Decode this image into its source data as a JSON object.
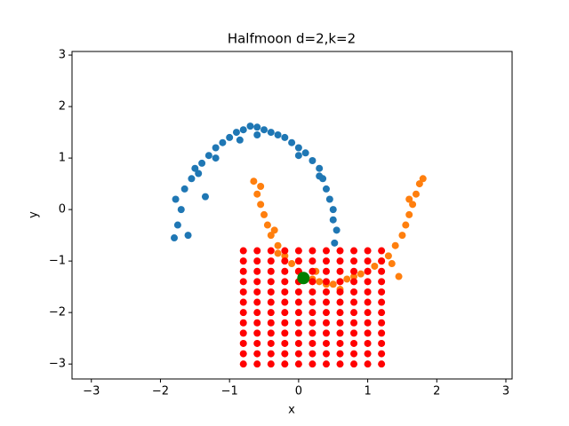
{
  "chart_data": {
    "type": "scatter",
    "title": "Halfmoon d=2,k=2",
    "x_label": "x",
    "y_label": "y",
    "xlim": [
      -3.28,
      3.09
    ],
    "ylim": [
      -3.29,
      3.07
    ],
    "xticks": [
      {
        "value": -3,
        "label": "−3"
      },
      {
        "value": -2,
        "label": "−2"
      },
      {
        "value": -1,
        "label": "−1"
      },
      0,
      1,
      2,
      3
    ],
    "yticks": [
      {
        "value": -3,
        "label": "−3"
      },
      {
        "value": -2,
        "label": "−2"
      },
      {
        "value": -1,
        "label": "−1"
      },
      0,
      1,
      2,
      3
    ],
    "grid": false,
    "series": [
      {
        "color": "#1f77b4",
        "x": [
          -1.8,
          -1.75,
          -1.78,
          -1.7,
          -1.65,
          -1.55,
          -1.5,
          -1.4,
          -1.3,
          -1.2,
          -1.1,
          -1.0,
          -0.9,
          -0.8,
          -0.7,
          -0.6,
          -0.5,
          -0.4,
          -0.3,
          -0.2,
          -0.1,
          0.0,
          0.1,
          0.2,
          0.3,
          0.35,
          0.4,
          0.45,
          0.5,
          0.5,
          0.55,
          0.52,
          -1.35,
          -1.6,
          -1.2,
          -0.6,
          0.0,
          0.3,
          -1.45,
          -0.85
        ],
        "y": [
          -0.55,
          -0.3,
          0.2,
          0,
          0.4,
          0.6,
          0.8,
          0.9,
          1.05,
          1.2,
          1.3,
          1.4,
          1.5,
          1.55,
          1.62,
          1.6,
          1.55,
          1.5,
          1.45,
          1.4,
          1.3,
          1.2,
          1.1,
          0.95,
          0.8,
          0.6,
          0.4,
          0.2,
          0,
          -0.2,
          -0.4,
          -0.65,
          0.25,
          -0.5,
          1.0,
          1.45,
          1.05,
          0.65,
          0.7,
          1.35
        ]
      },
      {
        "color": "#ff7f0e",
        "x": [
          -0.65,
          -0.6,
          -0.55,
          -0.5,
          -0.45,
          -0.4,
          -0.3,
          -0.2,
          -0.1,
          0.0,
          0.1,
          0.2,
          0.3,
          0.4,
          0.5,
          0.6,
          0.7,
          0.8,
          0.9,
          1.0,
          1.1,
          1.2,
          1.3,
          1.4,
          1.5,
          1.55,
          1.6,
          1.65,
          1.7,
          1.75,
          1.8,
          -0.55,
          -0.35,
          0.25,
          0.6,
          1.45,
          1.35,
          -0.3,
          1.6,
          0.0
        ],
        "y": [
          0.55,
          0.3,
          0.1,
          -0.1,
          -0.3,
          -0.5,
          -0.7,
          -0.9,
          -1.05,
          -1.2,
          -1.3,
          -1.35,
          -1.4,
          -1.45,
          -1.45,
          -1.4,
          -1.35,
          -1.3,
          -1.25,
          -1.2,
          -1.1,
          -1.0,
          -0.9,
          -0.7,
          -0.5,
          -0.3,
          -0.1,
          0.1,
          0.3,
          0.5,
          0.6,
          0.45,
          -0.4,
          -1.2,
          -1.55,
          -1.3,
          -1.05,
          -0.85,
          0.2,
          -1.0
        ]
      },
      {
        "color": "#ff0000",
        "x": [
          -0.8,
          -0.6,
          -0.4,
          -0.2,
          0,
          0.2,
          0.4,
          0.6,
          0.8,
          1,
          1.2,
          -0.8,
          -0.6,
          -0.4,
          -0.2,
          0,
          0.2,
          0.4,
          0.6,
          0.8,
          1,
          1.2,
          -0.8,
          -0.6,
          -0.4,
          -0.2,
          0,
          0.2,
          0.4,
          0.6,
          0.8,
          1,
          1.2,
          -0.8,
          -0.6,
          -0.4,
          -0.2,
          0,
          0.2,
          0.4,
          0.6,
          0.8,
          1,
          1.2,
          -0.8,
          -0.6,
          -0.4,
          -0.2,
          0,
          0.2,
          0.4,
          0.6,
          0.8,
          1,
          1.2,
          -0.8,
          -0.6,
          -0.4,
          -0.2,
          0,
          0.2,
          0.4,
          0.6,
          0.8,
          1,
          1.2,
          -0.8,
          -0.6,
          -0.4,
          -0.2,
          0,
          0.2,
          0.4,
          0.6,
          0.8,
          1,
          1.2,
          -0.8,
          -0.6,
          -0.4,
          -0.2,
          0,
          0.2,
          0.4,
          0.6,
          0.8,
          1,
          1.2,
          -0.8,
          -0.6,
          -0.4,
          -0.2,
          0,
          0.2,
          0.4,
          0.6,
          0.8,
          1,
          1.2,
          -0.8,
          -0.6,
          -0.4,
          -0.2,
          0,
          0.2,
          0.4,
          0.6,
          0.8,
          1,
          1.2,
          -0.8,
          -0.6,
          -0.4,
          -0.2,
          0,
          0.2,
          0.4,
          0.6,
          0.8,
          1,
          1.2,
          -0.8,
          -0.6,
          -0.4,
          -0.2,
          0,
          0.2,
          0.4,
          0.6,
          0.8,
          1,
          1.2
        ],
        "y": [
          -0.8,
          -0.8,
          -0.8,
          -0.8,
          -0.8,
          -0.8,
          -0.8,
          -0.8,
          -0.8,
          -0.8,
          -0.8,
          -1,
          -1,
          -1,
          -1,
          -1,
          -1,
          -1,
          -1,
          -1,
          -1,
          -1,
          -1.2,
          -1.2,
          -1.2,
          -1.2,
          -1.2,
          -1.2,
          -1.2,
          -1.2,
          -1.2,
          -1.2,
          -1.2,
          -1.4,
          -1.4,
          -1.4,
          -1.4,
          -1.4,
          -1.4,
          -1.4,
          -1.4,
          -1.4,
          -1.4,
          -1.4,
          -1.6,
          -1.6,
          -1.6,
          -1.6,
          -1.6,
          -1.6,
          -1.6,
          -1.6,
          -1.6,
          -1.6,
          -1.6,
          -1.8,
          -1.8,
          -1.8,
          -1.8,
          -1.8,
          -1.8,
          -1.8,
          -1.8,
          -1.8,
          -1.8,
          -1.8,
          -2,
          -2,
          -2,
          -2,
          -2,
          -2,
          -2,
          -2,
          -2,
          -2,
          -2,
          -2.2,
          -2.2,
          -2.2,
          -2.2,
          -2.2,
          -2.2,
          -2.2,
          -2.2,
          -2.2,
          -2.2,
          -2.2,
          -2.4,
          -2.4,
          -2.4,
          -2.4,
          -2.4,
          -2.4,
          -2.4,
          -2.4,
          -2.4,
          -2.4,
          -2.4,
          -2.6,
          -2.6,
          -2.6,
          -2.6,
          -2.6,
          -2.6,
          -2.6,
          -2.6,
          -2.6,
          -2.6,
          -2.6,
          -2.8,
          -2.8,
          -2.8,
          -2.8,
          -2.8,
          -2.8,
          -2.8,
          -2.8,
          -2.8,
          -2.8,
          -2.8,
          -3,
          -3,
          -3,
          -3,
          -3,
          -3,
          -3,
          -3,
          -3,
          -3,
          -3
        ]
      },
      {
        "color": "#008000",
        "x": [
          0.07
        ],
        "y": [
          -1.33
        ]
      }
    ]
  }
}
